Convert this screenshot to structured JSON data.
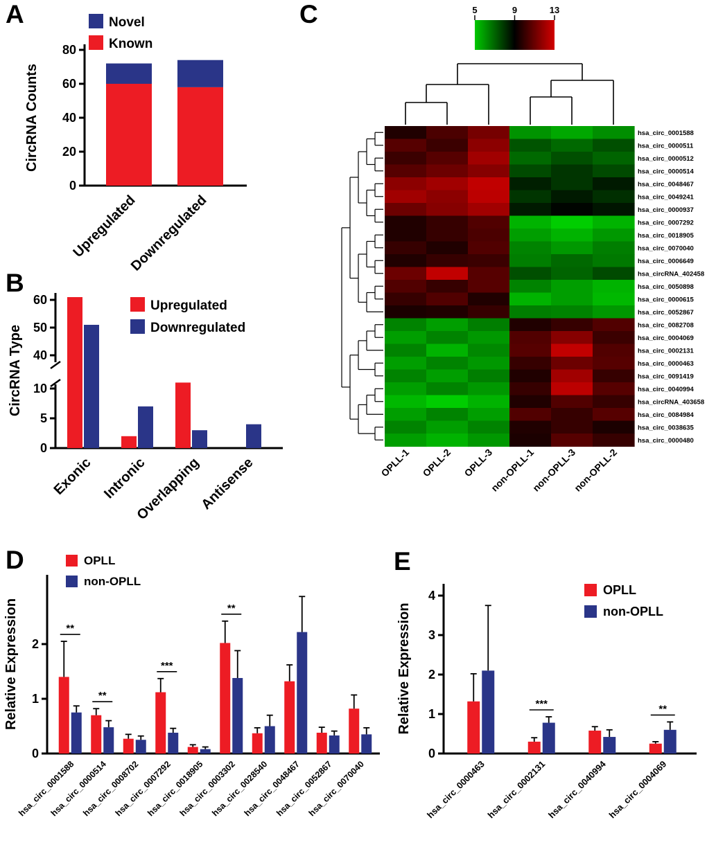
{
  "panels": {
    "a_label": "A",
    "b_label": "B",
    "c_label": "C",
    "d_label": "D",
    "e_label": "E"
  },
  "chart_data": [
    {
      "id": "A",
      "type": "bar",
      "subtype": "stacked",
      "title": "",
      "ylabel": "CircRNA Counts",
      "categories": [
        "Upregulated",
        "Downregulated"
      ],
      "series": [
        {
          "name": "Known",
          "color": "#ed1c24",
          "values": [
            60,
            58
          ]
        },
        {
          "name": "Novel",
          "color": "#2a3588",
          "values": [
            12,
            16
          ]
        }
      ],
      "ylim": [
        0,
        80
      ],
      "yticks": [
        0,
        20,
        40,
        60,
        80
      ],
      "legend": [
        "Novel",
        "Known"
      ],
      "legend_position": "top-left",
      "grid": false
    },
    {
      "id": "B",
      "type": "bar",
      "subtype": "grouped_broken_axis",
      "title": "",
      "ylabel": "CircRNA Type",
      "categories": [
        "Exonic",
        "Intronic",
        "Overlapping",
        "Antisense"
      ],
      "series": [
        {
          "name": "Upregulated",
          "color": "#ed1c24",
          "values": [
            59,
            2,
            11,
            0
          ]
        },
        {
          "name": "Downregulated",
          "color": "#2a3588",
          "values": [
            49,
            7,
            3,
            4
          ]
        }
      ],
      "axis_break": {
        "lower_range": [
          0,
          10
        ],
        "upper_range": [
          40,
          60
        ],
        "lower_ticks": [
          0,
          5,
          10
        ],
        "upper_ticks": [
          40,
          50,
          60
        ]
      },
      "legend_position": "top-right",
      "grid": false
    },
    {
      "id": "C",
      "type": "heatmap",
      "title": "",
      "colorscale": {
        "min": 5,
        "mid": 9,
        "max": 13,
        "ticks": [
          5,
          9,
          13
        ],
        "low_color": "#00c800",
        "mid_color": "#000000",
        "high_color": "#d40000"
      },
      "dendrograms": [
        "columns",
        "rows"
      ],
      "columns": [
        "OPLL-1",
        "OPLL-2",
        "OPLL-3",
        "non-OPLL-1",
        "non-OPLL-3",
        "non-OPLL-2"
      ],
      "rows": [
        "hsa_circ_0001588",
        "hsa_circ_0000511",
        "hsa_circ_0000512",
        "hsa_circ_0000514",
        "hsa_circ_0048467",
        "hsa_circ_0049241",
        "hsa_circ_0000937",
        "hsa_circ_0007292",
        "hsa_circ_0018905",
        "hsa_circ_0070040",
        "hsa_circ_0006649",
        "hsa_circRNA_402458",
        "hsa_circ_0050898",
        "hsa_circ_0000615",
        "hsa_circ_0052867",
        "hsa_circ_0082708",
        "hsa_circ_0004069",
        "hsa_circ_0002131",
        "hsa_circ_0000463",
        "hsa_circ_0091419",
        "hsa_circ_0040994",
        "hsa_circRNA_403658",
        "hsa_circ_0084984",
        "hsa_circ_0038635",
        "hsa_circ_0000480"
      ],
      "highlighted_row": "hsa_circ_0007292",
      "highlight_color": "#ff0000",
      "values": [
        [
          9.6,
          10.4,
          11.2,
          6.2,
          5.8,
          6.3
        ],
        [
          10.6,
          10.1,
          11.6,
          7.4,
          7.0,
          7.5
        ],
        [
          10.1,
          10.6,
          12.0,
          7.0,
          7.5,
          7.1
        ],
        [
          10.6,
          11.0,
          11.5,
          7.6,
          8.0,
          7.6
        ],
        [
          11.6,
          12.0,
          12.6,
          8.4,
          8.0,
          8.5
        ],
        [
          12.0,
          11.6,
          12.5,
          8.0,
          8.5,
          8.1
        ],
        [
          11.0,
          11.5,
          12.0,
          8.5,
          8.9,
          8.6
        ],
        [
          9.6,
          10.0,
          10.5,
          5.6,
          5.1,
          5.6
        ],
        [
          9.6,
          10.0,
          10.4,
          6.0,
          5.6,
          6.1
        ],
        [
          10.0,
          9.6,
          10.5,
          6.5,
          6.1,
          6.6
        ],
        [
          9.6,
          10.0,
          10.1,
          6.6,
          7.0,
          6.7
        ],
        [
          11.0,
          12.6,
          10.6,
          7.5,
          7.1,
          7.6
        ],
        [
          10.5,
          10.0,
          10.6,
          6.5,
          6.0,
          5.6
        ],
        [
          10.0,
          10.5,
          9.6,
          5.6,
          6.0,
          5.5
        ],
        [
          9.5,
          9.6,
          10.0,
          6.6,
          6.5,
          6.1
        ],
        [
          6.5,
          6.0,
          6.6,
          9.6,
          10.0,
          10.5
        ],
        [
          6.0,
          6.5,
          6.1,
          10.5,
          11.5,
          10.1
        ],
        [
          6.5,
          5.6,
          6.4,
          10.6,
          12.6,
          10.5
        ],
        [
          6.0,
          6.5,
          6.1,
          10.0,
          11.0,
          10.6
        ],
        [
          6.5,
          6.0,
          6.6,
          9.6,
          12.0,
          10.0
        ],
        [
          6.0,
          6.5,
          6.1,
          10.0,
          12.5,
          10.6
        ],
        [
          5.5,
          5.1,
          5.6,
          9.6,
          10.5,
          10.0
        ],
        [
          6.0,
          6.5,
          6.0,
          10.5,
          10.0,
          10.6
        ],
        [
          6.5,
          6.0,
          6.5,
          9.6,
          10.0,
          9.5
        ],
        [
          6.0,
          5.6,
          6.1,
          9.5,
          10.6,
          10.0
        ]
      ]
    },
    {
      "id": "D",
      "type": "bar",
      "subtype": "grouped_errorbars",
      "title": "",
      "ylabel": "Relative Expression",
      "ylim": [
        0,
        3.2
      ],
      "yticks": [
        0,
        1,
        2
      ],
      "categories": [
        "hsa_circ_0001588",
        "hsa_circ_0000514",
        "hsa_circ_0008702",
        "hsa_circ_0007292",
        "hsa_circ_0018905",
        "hsa_circ_0003302",
        "hsa_circ_0028540",
        "hsa_circ_0048467",
        "hsa_circ_0052867",
        "hsa_circ_0070040"
      ],
      "series": [
        {
          "name": "OPLL",
          "color": "#ed1c24",
          "values": [
            1.4,
            0.7,
            0.27,
            1.12,
            0.12,
            2.02,
            0.37,
            1.32,
            0.38,
            0.82
          ],
          "errors": [
            0.65,
            0.12,
            0.08,
            0.25,
            0.04,
            0.4,
            0.1,
            0.3,
            0.1,
            0.25
          ]
        },
        {
          "name": "non-OPLL",
          "color": "#2a3588",
          "values": [
            0.75,
            0.48,
            0.25,
            0.38,
            0.08,
            1.38,
            0.5,
            2.22,
            0.33,
            0.35
          ],
          "errors": [
            0.12,
            0.12,
            0.07,
            0.08,
            0.04,
            0.5,
            0.2,
            0.65,
            0.08,
            0.12
          ]
        }
      ],
      "significance": [
        {
          "category": "hsa_circ_0001588",
          "label": "**"
        },
        {
          "category": "hsa_circ_0000514",
          "label": "**"
        },
        {
          "category": "hsa_circ_0007292",
          "label": "***"
        },
        {
          "category": "hsa_circ_0003302",
          "label": "**"
        }
      ],
      "legend_position": "top-left",
      "grid": false
    },
    {
      "id": "E",
      "type": "bar",
      "subtype": "grouped_errorbars",
      "title": "",
      "ylabel": "Relative Expression",
      "ylim": [
        0,
        4.3
      ],
      "yticks": [
        0,
        1,
        2,
        3,
        4
      ],
      "categories": [
        "hsa_circ_0000463",
        "hsa_circ_0002131",
        "hsa_circ_0040994",
        "hsa_circ_0004069"
      ],
      "series": [
        {
          "name": "OPLL",
          "color": "#ed1c24",
          "values": [
            1.32,
            0.3,
            0.58,
            0.25
          ],
          "errors": [
            0.7,
            0.1,
            0.1,
            0.05
          ]
        },
        {
          "name": "non-OPLL",
          "color": "#2a3588",
          "values": [
            2.1,
            0.78,
            0.42,
            0.6
          ],
          "errors": [
            1.65,
            0.15,
            0.18,
            0.2
          ]
        }
      ],
      "significance": [
        {
          "category": "hsa_circ_0002131",
          "label": "***"
        },
        {
          "category": "hsa_circ_0004069",
          "label": "**"
        }
      ],
      "legend_position": "top-right",
      "grid": false
    }
  ]
}
